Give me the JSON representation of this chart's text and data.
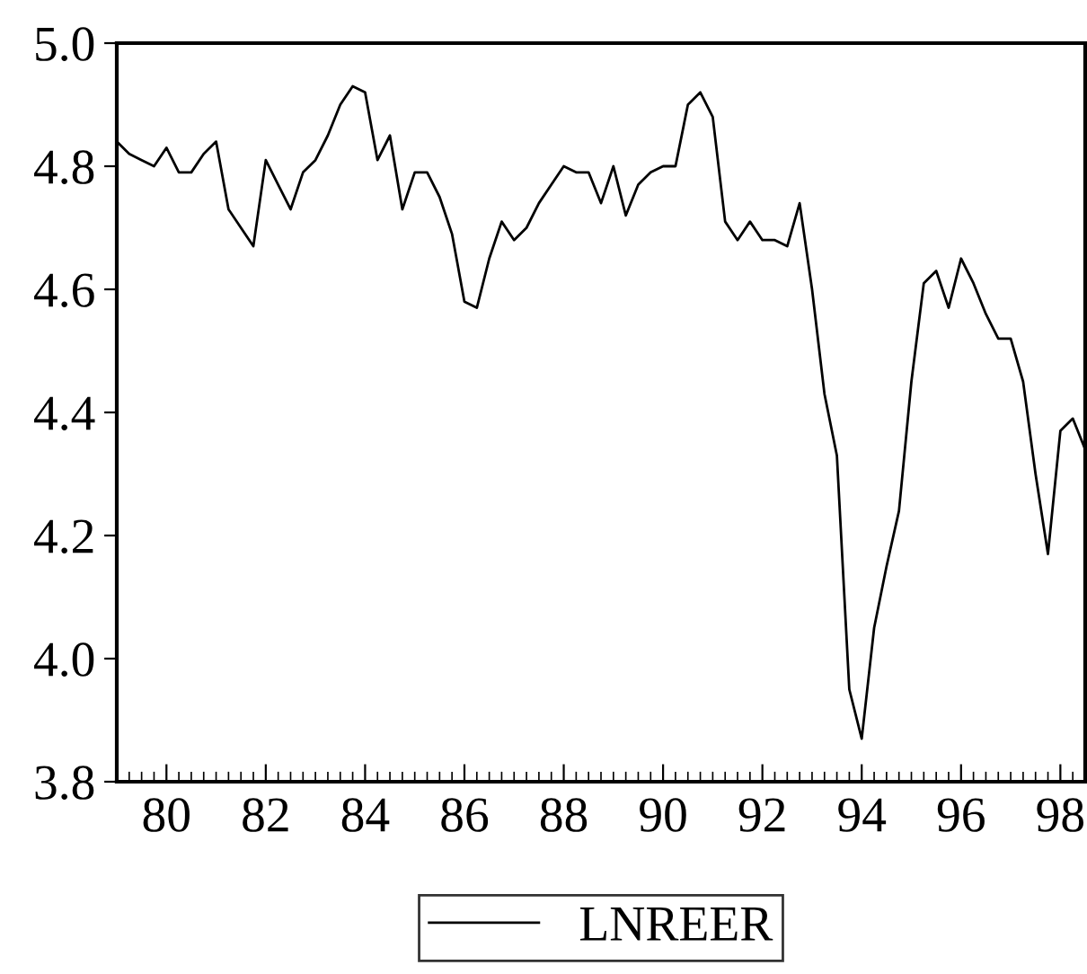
{
  "chart_data": {
    "type": "line",
    "x": [
      1979.0,
      1979.25,
      1979.5,
      1979.75,
      1980.0,
      1980.25,
      1980.5,
      1980.75,
      1981.0,
      1981.25,
      1981.5,
      1981.75,
      1982.0,
      1982.25,
      1982.5,
      1982.75,
      1983.0,
      1983.25,
      1983.5,
      1983.75,
      1984.0,
      1984.25,
      1984.5,
      1984.75,
      1985.0,
      1985.25,
      1985.5,
      1985.75,
      1986.0,
      1986.25,
      1986.5,
      1986.75,
      1987.0,
      1987.25,
      1987.5,
      1987.75,
      1988.0,
      1988.25,
      1988.5,
      1988.75,
      1989.0,
      1989.25,
      1989.5,
      1989.75,
      1990.0,
      1990.25,
      1990.5,
      1990.75,
      1991.0,
      1991.25,
      1991.5,
      1991.75,
      1992.0,
      1992.25,
      1992.5,
      1992.75,
      1993.0,
      1993.25,
      1993.5,
      1993.75,
      1994.0,
      1994.25,
      1994.5,
      1994.75,
      1995.0,
      1995.25,
      1995.5,
      1995.75,
      1996.0,
      1996.25,
      1996.5,
      1996.75,
      1997.0,
      1997.25,
      1997.5,
      1997.75,
      1998.0,
      1998.25,
      1998.5
    ],
    "series": [
      {
        "name": "LNREER",
        "color": "#000000",
        "values": [
          4.84,
          4.82,
          4.81,
          4.8,
          4.83,
          4.79,
          4.79,
          4.82,
          4.84,
          4.73,
          4.7,
          4.67,
          4.81,
          4.77,
          4.73,
          4.79,
          4.81,
          4.85,
          4.9,
          4.93,
          4.92,
          4.81,
          4.85,
          4.73,
          4.79,
          4.79,
          4.75,
          4.69,
          4.58,
          4.57,
          4.65,
          4.71,
          4.68,
          4.7,
          4.74,
          4.77,
          4.8,
          4.79,
          4.79,
          4.74,
          4.8,
          4.72,
          4.77,
          4.79,
          4.8,
          4.8,
          4.9,
          4.92,
          4.88,
          4.71,
          4.68,
          4.71,
          4.68,
          4.68,
          4.67,
          4.74,
          4.6,
          4.43,
          4.33,
          3.95,
          3.87,
          4.05,
          4.15,
          4.24,
          4.45,
          4.61,
          4.63,
          4.57,
          4.65,
          4.61,
          4.56,
          4.52,
          4.52,
          4.45,
          4.3,
          4.17,
          4.37,
          4.39,
          4.34
        ]
      }
    ],
    "xlim": [
      1979.0,
      1998.5
    ],
    "xticks": [
      {
        "value": 1980,
        "label": "80"
      },
      {
        "value": 1982,
        "label": "82"
      },
      {
        "value": 1984,
        "label": "84"
      },
      {
        "value": 1986,
        "label": "86"
      },
      {
        "value": 1988,
        "label": "88"
      },
      {
        "value": 1990,
        "label": "90"
      },
      {
        "value": 1992,
        "label": "92"
      },
      {
        "value": 1994,
        "label": "94"
      },
      {
        "value": 1996,
        "label": "96"
      },
      {
        "value": 1998,
        "label": "98"
      }
    ],
    "ylim": [
      3.8,
      5.0
    ],
    "yticks": [
      3.8,
      {
        "value": 4,
        "label": "4.0"
      },
      4.2,
      4.4,
      4.6,
      4.8,
      {
        "value": 5,
        "label": "5.0"
      }
    ],
    "grid": false,
    "legend": "bottom",
    "marker": "none",
    "line_style": "solid"
  }
}
